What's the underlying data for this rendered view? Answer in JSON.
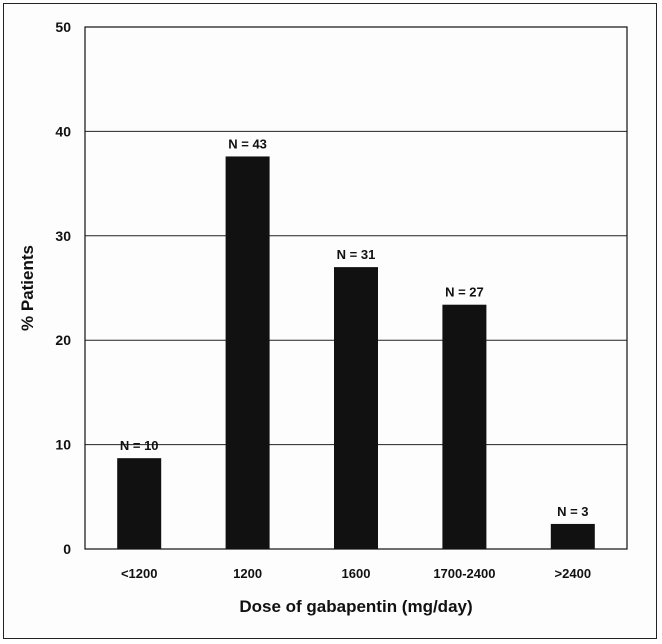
{
  "chart_data": {
    "type": "bar",
    "title": "",
    "xlabel": "Dose of gabapentin (mg/day)",
    "ylabel": "% Patients",
    "categories": [
      "<1200",
      "1200",
      "1600",
      "1700-2400",
      ">2400"
    ],
    "values": [
      8.7,
      37.6,
      27.0,
      23.4,
      2.4
    ],
    "data_labels": [
      "N = 10",
      "N = 43",
      "N = 31",
      "N = 27",
      "N = 3"
    ],
    "ylim": [
      0,
      50
    ],
    "yticks": [
      0,
      10,
      20,
      30,
      40,
      50
    ],
    "grid": true,
    "legend": "none",
    "bar_color": "#111111"
  }
}
